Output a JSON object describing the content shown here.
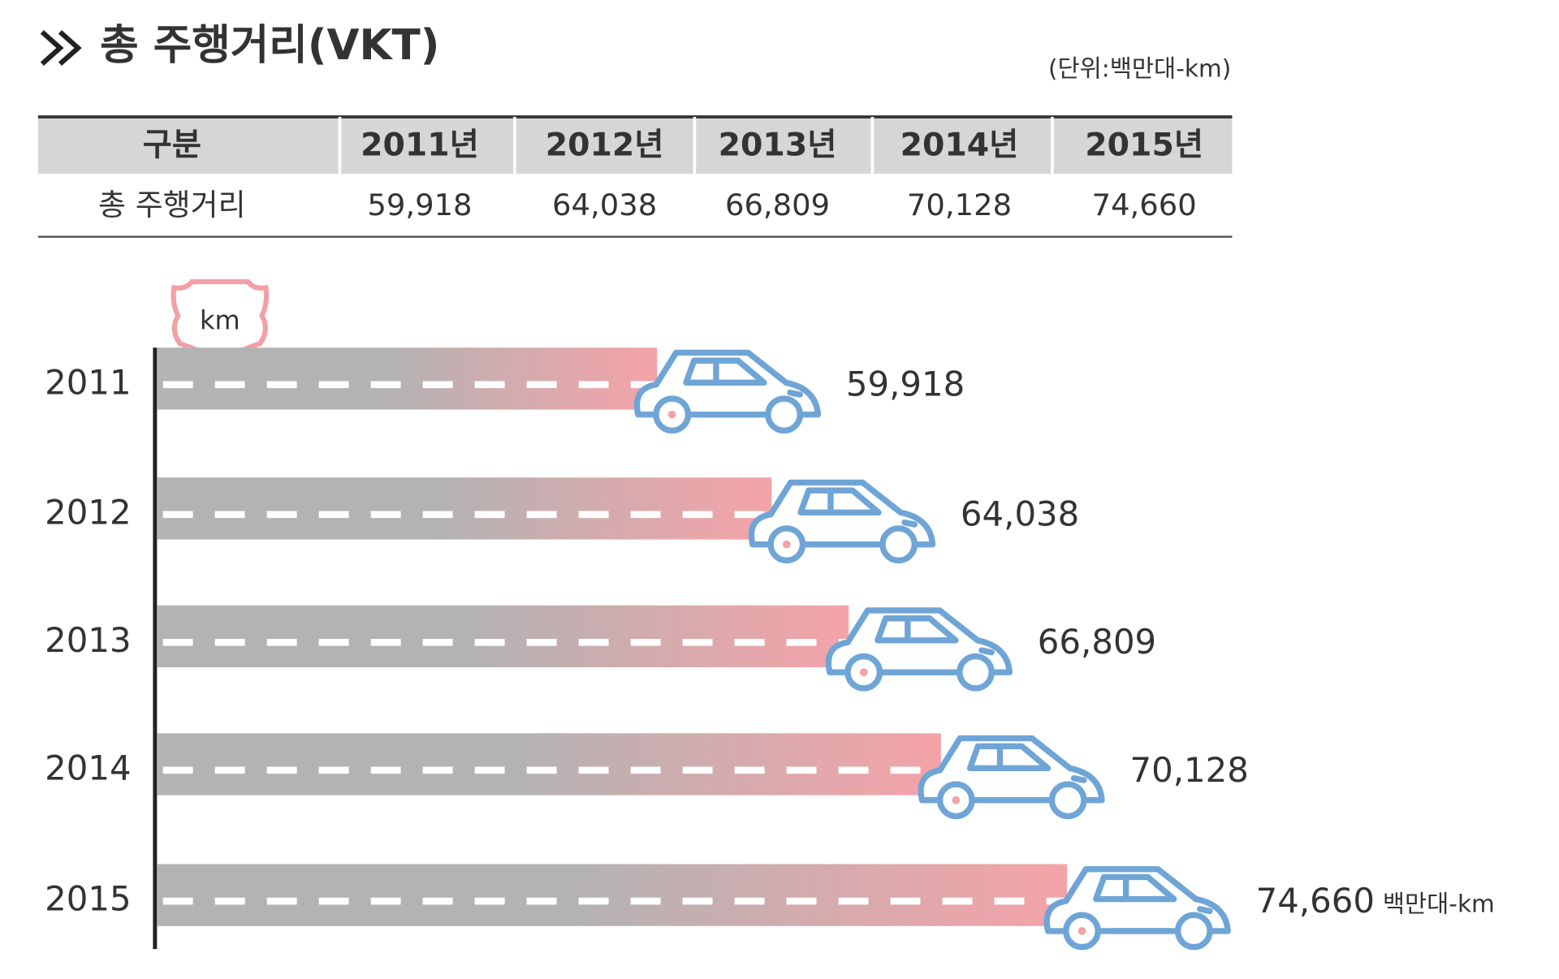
{
  "header": {
    "title": "총 주행거리(VKT)",
    "unit": "(단위:백만대-km)"
  },
  "table": {
    "columns": [
      "구분",
      "2011년",
      "2012년",
      "2013년",
      "2014년",
      "2015년"
    ],
    "rows": [
      [
        "총 주행거리",
        "59,918",
        "64,038",
        "66,809",
        "70,128",
        "74,660"
      ]
    ]
  },
  "chart_data": {
    "type": "road-bar",
    "icon_label": "km",
    "categories": [
      "2011",
      "2012",
      "2013",
      "2014",
      "2015"
    ],
    "values": [
      59918,
      64038,
      66809,
      70128,
      74660
    ],
    "value_labels": [
      "59,918",
      "64,038",
      "66,809",
      "70,128",
      "74,660"
    ],
    "last_label_unit": "백만대-km",
    "xlim": [
      36000,
      76000
    ],
    "colors": {
      "road_start": "#b3b3b3",
      "road_end": "#f4a3a8",
      "car": "#6fa5d6"
    }
  }
}
